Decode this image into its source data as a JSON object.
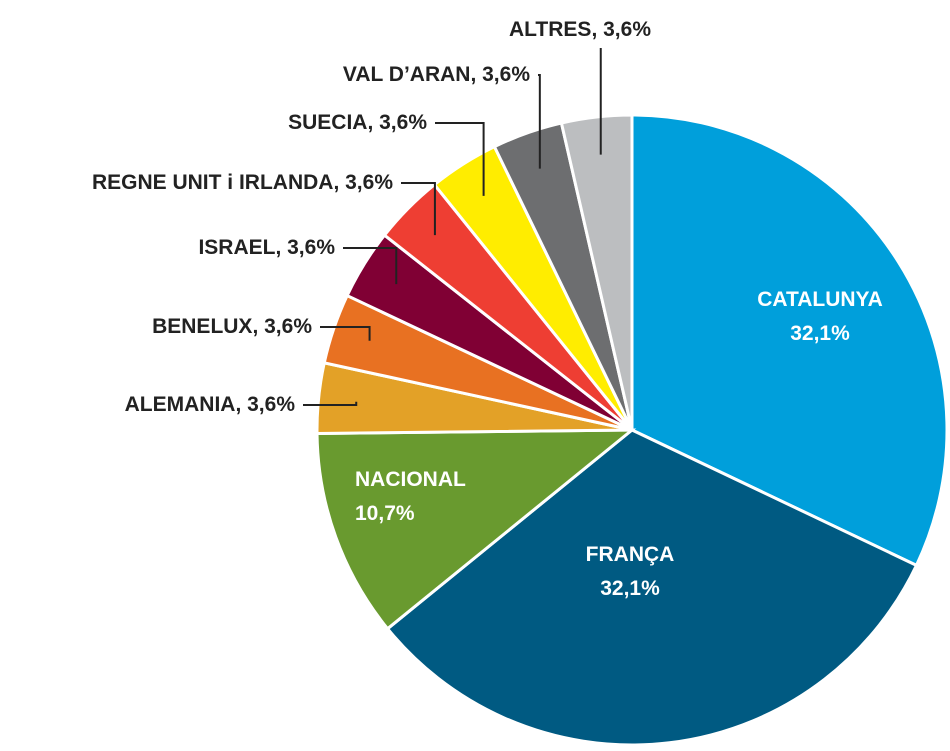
{
  "chart_data": {
    "type": "pie",
    "categories": [
      "CATALUNYA",
      "FRANÇA",
      "NACIONAL",
      "ALEMANIA",
      "BENELUX",
      "ISRAEL",
      "REGNE UNIT i IRLANDA",
      "SUECIA",
      "VAL D’ARAN",
      "ALTRES"
    ],
    "values": [
      32.1,
      32.1,
      10.7,
      3.6,
      3.6,
      3.6,
      3.6,
      3.6,
      3.6,
      3.6
    ],
    "value_labels": [
      "32,1%",
      "32,1%",
      "10,7%",
      "3,6%",
      "3,6%",
      "3,6%",
      "3,6%",
      "3,6%",
      "3,6%",
      "3,6%"
    ],
    "colors": [
      "#009fdb",
      "#005a82",
      "#699a2f",
      "#e3a127",
      "#e87122",
      "#800034",
      "#ee3e33",
      "#ffed00",
      "#6d6e70",
      "#bcbec0"
    ]
  }
}
